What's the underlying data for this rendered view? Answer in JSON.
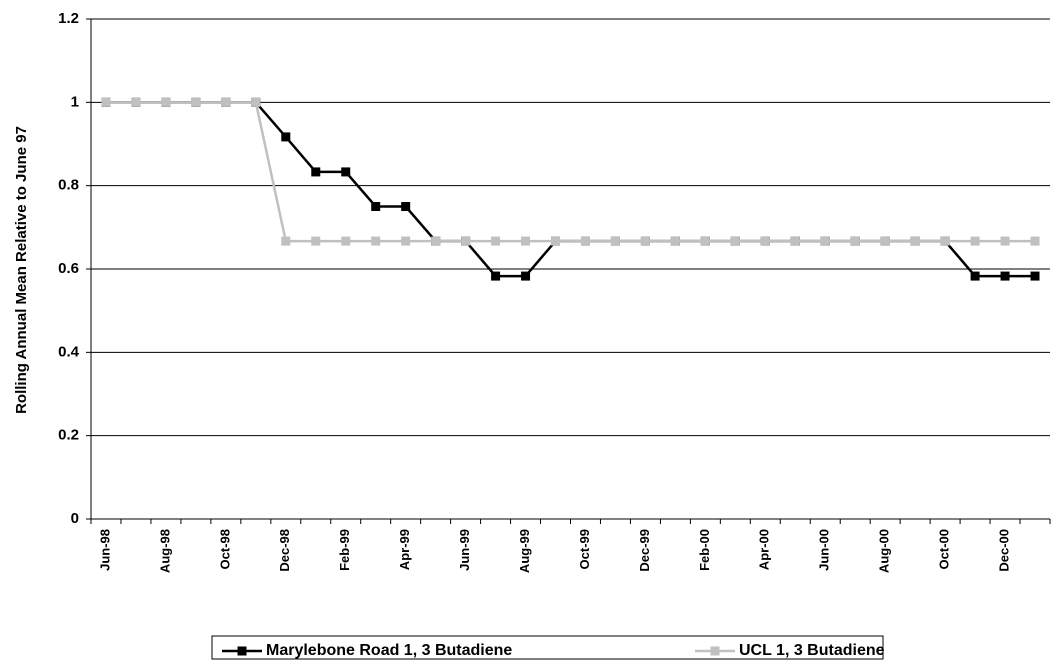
{
  "chart_data": {
    "type": "line",
    "y_label": "Rolling Annual Mean Relative to June 97",
    "categories": [
      "Jun-98",
      null,
      "Aug-98",
      null,
      "Oct-98",
      null,
      "Dec-98",
      null,
      "Feb-99",
      null,
      "Apr-99",
      null,
      "Jun-99",
      null,
      "Aug-99",
      null,
      "Oct-99",
      null,
      "Dec-99",
      null,
      "Feb-00",
      null,
      "Apr-00",
      null,
      "Jun-00",
      null,
      "Aug-00",
      null,
      "Oct-00",
      null,
      "Dec-00",
      null
    ],
    "series": [
      {
        "name": "Marylebone Road 1, 3 Butadiene",
        "color": "#000000",
        "values": [
          1,
          1,
          1,
          1,
          1,
          1,
          0.917,
          0.833,
          0.833,
          0.75,
          0.75,
          0.667,
          0.667,
          0.583,
          0.583,
          0.667,
          0.667,
          0.667,
          0.667,
          0.667,
          0.667,
          0.667,
          0.667,
          0.667,
          0.667,
          0.667,
          0.667,
          0.667,
          0.667,
          0.583,
          0.583,
          0.583
        ]
      },
      {
        "name": "UCL 1, 3 Butadiene",
        "color": "#c0c0c0",
        "values": [
          1,
          1,
          1,
          1,
          1,
          1,
          0.667,
          0.667,
          0.667,
          0.667,
          0.667,
          0.667,
          0.667,
          0.667,
          0.667,
          0.667,
          0.667,
          0.667,
          0.667,
          0.667,
          0.667,
          0.667,
          0.667,
          0.667,
          0.667,
          0.667,
          0.667,
          0.667,
          0.667,
          0.667,
          0.667,
          0.667
        ]
      }
    ],
    "ylim": [
      0,
      1.2
    ],
    "yticks": [
      0,
      0.2,
      0.4,
      0.6,
      0.8,
      1,
      1.2
    ],
    "grid": true,
    "legend": "bottom"
  }
}
